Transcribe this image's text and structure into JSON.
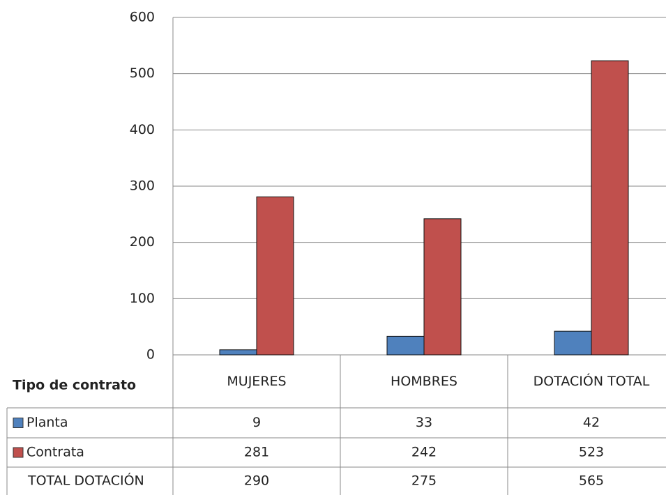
{
  "chart_data": {
    "type": "bar",
    "categories": [
      "MUJERES",
      "HOMBRES",
      "DOTACIÓN TOTAL"
    ],
    "series": [
      {
        "name": "Planta",
        "color": "#4f81bd",
        "values": [
          9,
          33,
          42
        ]
      },
      {
        "name": "Contrata",
        "color": "#c0504d",
        "values": [
          281,
          242,
          523
        ]
      }
    ],
    "table_header": "Tipo de contrato",
    "total_row": {
      "name": "TOTAL DOTACIÓN",
      "values": [
        290,
        275,
        565
      ]
    },
    "ylim": [
      0,
      600
    ],
    "yticks": [
      0,
      100,
      200,
      300,
      400,
      500,
      600
    ],
    "grid": true
  }
}
